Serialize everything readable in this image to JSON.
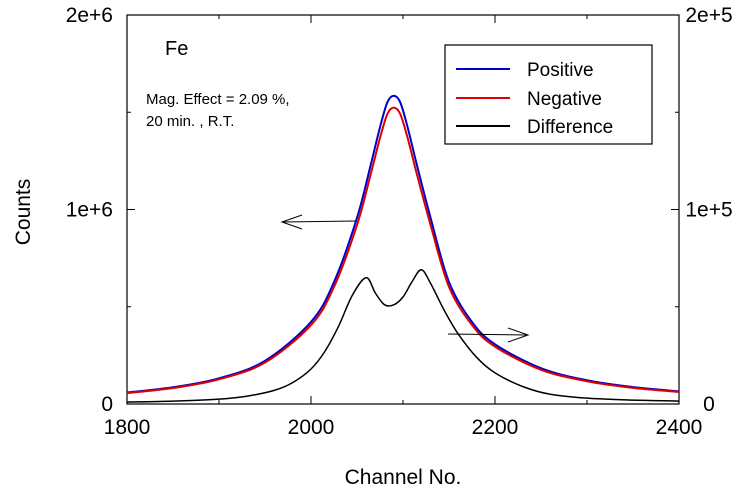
{
  "chart_data": {
    "type": "line",
    "title": "",
    "xlabel": "Channel No.",
    "ylabel": "Counts",
    "xlim": [
      1800,
      2400
    ],
    "ylim_left": [
      0,
      2000000
    ],
    "ylim_right": [
      0,
      200000
    ],
    "x_ticks": [
      1800,
      2000,
      2200,
      2400
    ],
    "x_tick_labels": [
      "1800",
      "2000",
      "2200",
      "2400"
    ],
    "y_left_ticks": [
      0,
      1000000,
      2000000
    ],
    "y_left_tick_labels": [
      "0",
      "1e+6",
      "2e+6"
    ],
    "y_right_ticks": [
      0,
      100000,
      200000
    ],
    "y_right_tick_labels": [
      "0",
      "1e+5",
      "2e+5"
    ],
    "grid": false,
    "legend_position": "top-right",
    "series": [
      {
        "name": "Positive",
        "color": "#0000cc",
        "axis": "left",
        "x": [
          1800,
          1850,
          1900,
          1950,
          2000,
          2025,
          2050,
          2065,
          2075,
          2083,
          2090,
          2097,
          2105,
          2115,
          2130,
          2150,
          2175,
          2200,
          2250,
          2300,
          2350,
          2400
        ],
        "y": [
          59000,
          86000,
          132000,
          222000,
          422000,
          627000,
          957000,
          1231000,
          1423000,
          1551000,
          1585000,
          1551000,
          1423000,
          1231000,
          957000,
          627000,
          422000,
          307000,
          184000,
          122000,
          87000,
          65000
        ]
      },
      {
        "name": "Negative",
        "color": "#dd0000",
        "axis": "left",
        "x": [
          1800,
          1850,
          1900,
          1950,
          2000,
          2025,
          2050,
          2065,
          2075,
          2083,
          2090,
          2097,
          2105,
          2115,
          2130,
          2150,
          2175,
          2200,
          2250,
          2300,
          2350,
          2400
        ],
        "y": [
          56000,
          82000,
          127000,
          213000,
          406000,
          602000,
          920000,
          1183000,
          1368000,
          1491000,
          1524000,
          1491000,
          1368000,
          1183000,
          920000,
          602000,
          406000,
          295000,
          176000,
          117000,
          83000,
          62000
        ]
      },
      {
        "name": "Difference",
        "color": "#000000",
        "axis": "right",
        "x": [
          1800,
          1850,
          1900,
          1930,
          1960,
          1980,
          2000,
          2015,
          2030,
          2045,
          2060,
          2070,
          2080,
          2090,
          2100,
          2110,
          2120,
          2130,
          2145,
          2160,
          2180,
          2200,
          2230,
          2260,
          2300,
          2350,
          2400
        ],
        "y": [
          1000,
          1500,
          2500,
          4000,
          7000,
          11000,
          18000,
          27000,
          40000,
          56000,
          65000,
          57000,
          51000,
          51000,
          55000,
          63000,
          69000,
          62000,
          48000,
          36000,
          24000,
          16000,
          9000,
          5000,
          3000,
          2000,
          1500
        ]
      }
    ],
    "annotations": {
      "sample_label": "Fe",
      "effect_text": "Mag. Effect = 2.09 %,",
      "condition_text": "20 min. ,  R.T."
    }
  }
}
